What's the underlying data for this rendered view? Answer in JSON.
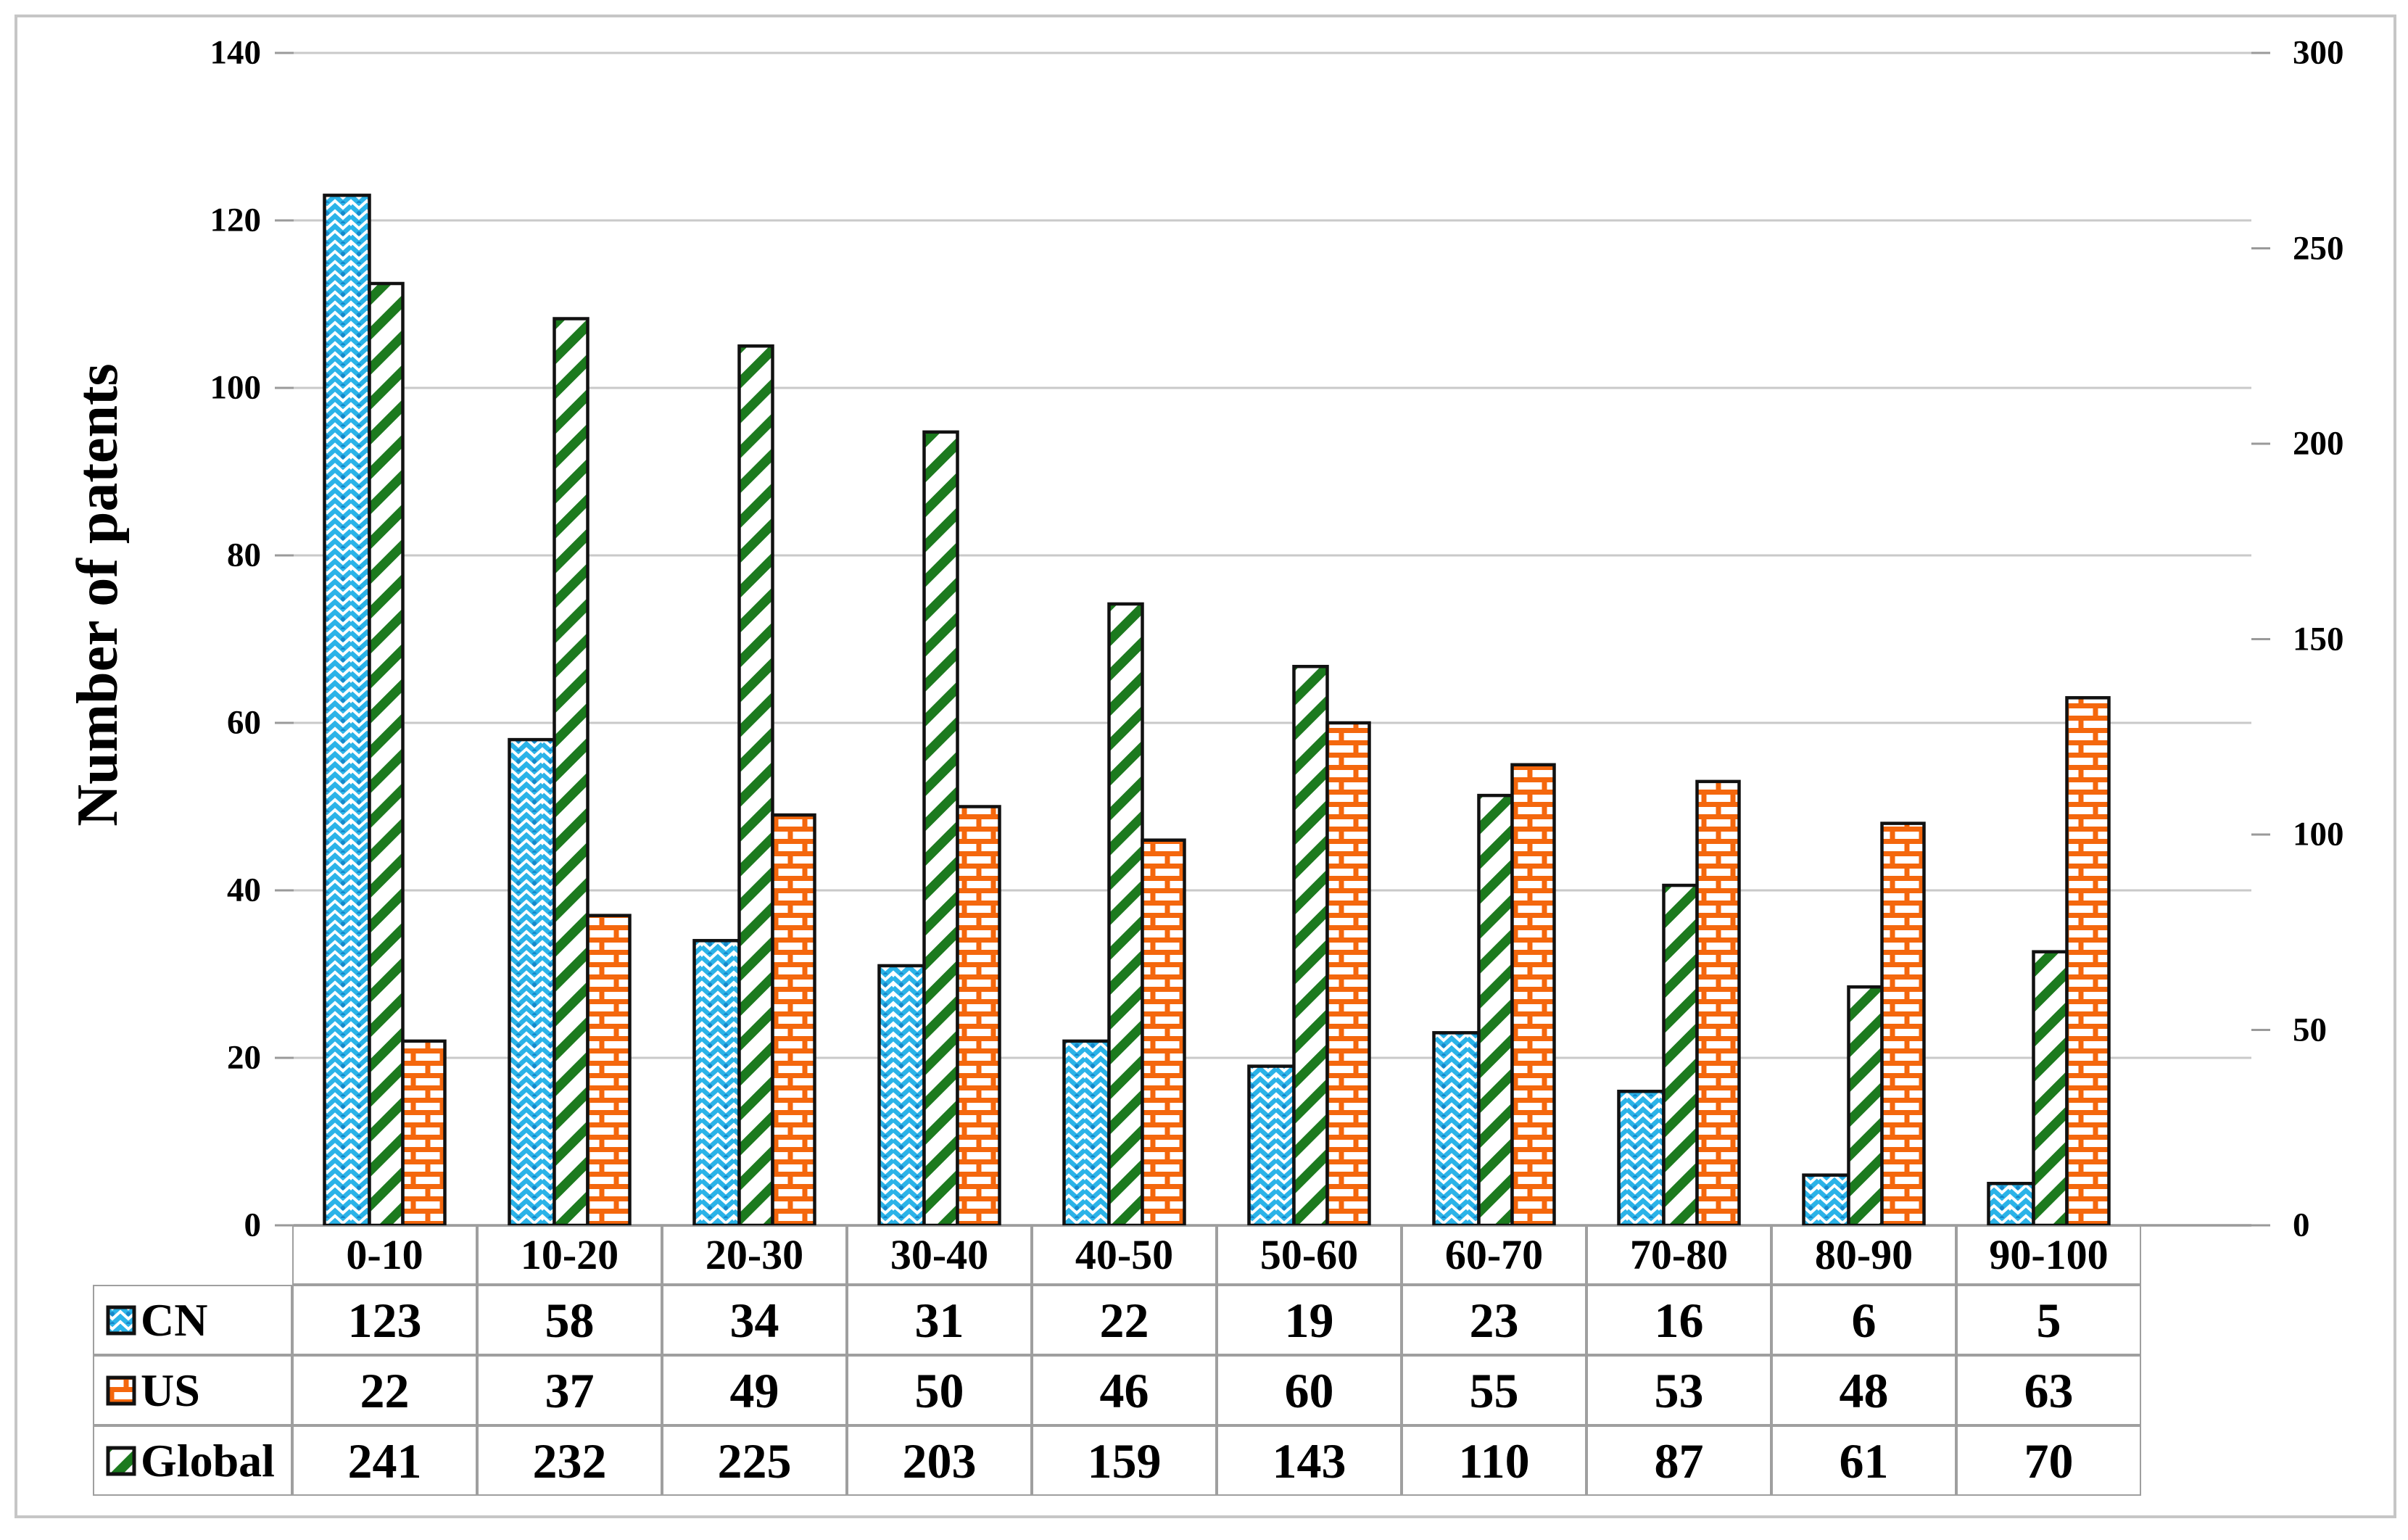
{
  "y_axis_left": {
    "title": "Number of patents",
    "ticks": [
      "0",
      "20",
      "40",
      "60",
      "80",
      "100",
      "120",
      "140"
    ],
    "min": 0,
    "max": 140,
    "step": 20
  },
  "y_axis_right": {
    "ticks": [
      "0",
      "50",
      "100",
      "150",
      "200",
      "250",
      "300"
    ],
    "min": 0,
    "max": 300,
    "step": 50
  },
  "chart_data": {
    "type": "bar",
    "title": "",
    "categories": [
      "0-10",
      "10-20",
      "20-30",
      "30-40",
      "40-50",
      "50-60",
      "60-70",
      "70-80",
      "80-90",
      "90-100"
    ],
    "series": [
      {
        "name": "CN",
        "axis": "left",
        "pattern": "chevron",
        "color": "#2bb3e8",
        "accent": "#1787c9",
        "values": [
          123,
          58,
          34,
          31,
          22,
          19,
          23,
          16,
          6,
          5
        ]
      },
      {
        "name": "US",
        "axis": "left",
        "pattern": "brick",
        "color": "#f4670d",
        "values": [
          22,
          37,
          49,
          50,
          46,
          60,
          55,
          53,
          48,
          63
        ]
      },
      {
        "name": "Global",
        "axis": "right",
        "pattern": "diagonal",
        "color": "#1c7a1e",
        "values": [
          241,
          232,
          225,
          203,
          159,
          143,
          110,
          87,
          61,
          70
        ]
      }
    ],
    "bar_order": [
      "CN",
      "Global",
      "US"
    ],
    "left_ylim": [
      0,
      140
    ],
    "right_ylim": [
      0,
      300
    ],
    "grid": true,
    "legend_position": "table-left-column"
  },
  "colors": {
    "gridline": "#c9c9c9",
    "axis_line": "#9a9a9a",
    "table_border": "#9f9f9f",
    "bar_outline": "#111111",
    "frame": "#c6c6c6",
    "text": "#000000",
    "background": "#ffffff"
  }
}
